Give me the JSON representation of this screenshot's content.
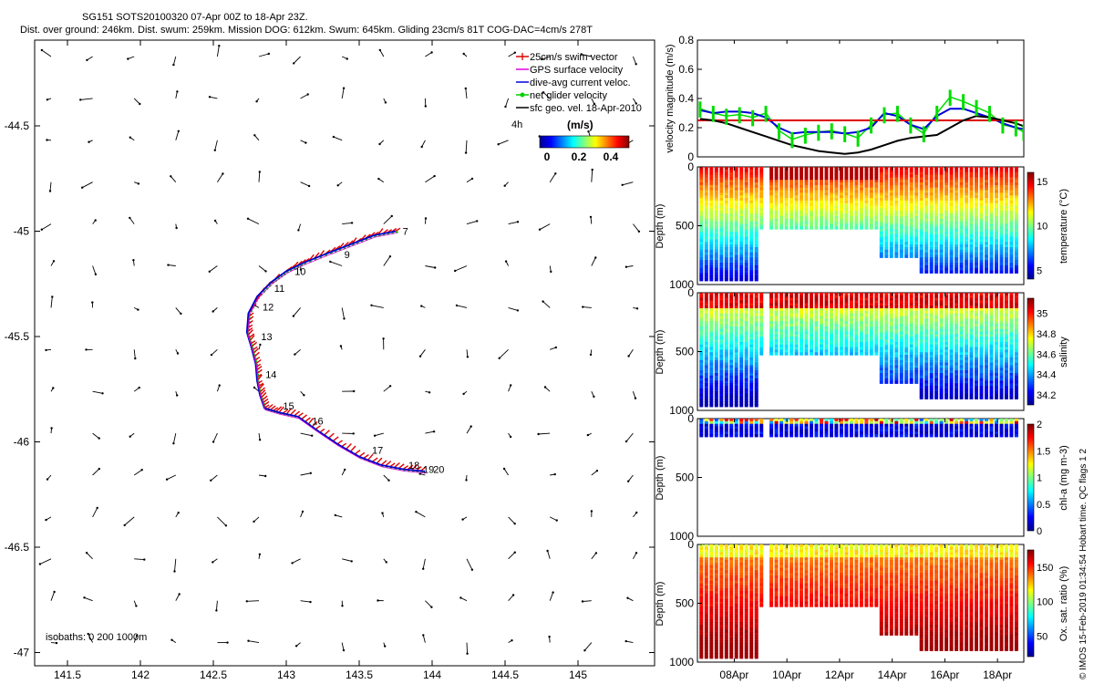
{
  "header": {
    "line1": "SG151 SOTS20100320 07-Apr 00Z to 18-Apr 23Z.",
    "line2": "Dist. over ground: 246km. Dist. swum: 259km. Mission DOG: 612km. Swum: 645km. Gliding 23cm/s 81T COG-DAC=4cm/s 278T"
  },
  "footer_credit": "© IMOS 15-Feb-2019 01:34:54 Hobart time. QC flags 1  2",
  "map": {
    "legend": {
      "items": [
        {
          "label": "25cm/s swim vector",
          "color": "#e00000",
          "marker": "+"
        },
        {
          "label": "GPS surface velocity",
          "color": "#e000e0",
          "marker": "-"
        },
        {
          "label": "dive-avg current veloc.",
          "color": "#0000e0",
          "marker": "-"
        },
        {
          "label": "net glider velocity",
          "color": "#00d000",
          "marker": "*"
        },
        {
          "label": "sfc geo. vel. 18-Apr-2010",
          "color": "#000000",
          "marker": "."
        }
      ],
      "scale_label": "4h",
      "colorbar_title": "(m/s)",
      "colorbar_ticks": [
        "0",
        "0.2",
        "0.4"
      ]
    },
    "isobaths_label": "isobaths: 0   200  1000m",
    "x_ticks": [
      "141.5",
      "142",
      "142.5",
      "143",
      "143.5",
      "144",
      "144.5",
      "145"
    ],
    "y_ticks": [
      "-44.5",
      "-45",
      "-45.5",
      "-46",
      "-46.5",
      "-47"
    ],
    "day_labels": [
      "7",
      "9",
      "10",
      "11",
      "12",
      "13",
      "14",
      "15",
      "16",
      "17",
      "18",
      "19",
      "20"
    ]
  },
  "time_axis": {
    "labels": [
      "08Apr",
      "10Apr",
      "12Apr",
      "14Apr",
      "16Apr",
      "18Apr"
    ]
  },
  "panels": [
    {
      "ylabel": "velocity magnitude (m/s)",
      "yticks": [
        "0",
        "0.2",
        "0.4",
        "0.6",
        "0.8"
      ]
    },
    {
      "ylabel": "Depth (m)",
      "yticks": [
        "0",
        "500",
        "1000"
      ],
      "cbar_label": "temperature (°C)",
      "cbar_ticks": [
        "5",
        "10",
        "15"
      ]
    },
    {
      "ylabel": "Depth (m)",
      "yticks": [
        "0",
        "500",
        "1000"
      ],
      "cbar_label": "salinity",
      "cbar_ticks": [
        "34.2",
        "34.4",
        "34.6",
        "34.8",
        "35"
      ]
    },
    {
      "ylabel": "Depth (m)",
      "yticks": [
        "0",
        "500",
        "1000"
      ],
      "cbar_label": "chl-a (mg m-3)",
      "cbar_ticks": [
        "0",
        "0.5",
        "1",
        "1.5",
        "2"
      ]
    },
    {
      "ylabel": "Depth (m)",
      "yticks": [
        "0",
        "500",
        "1000"
      ],
      "cbar_label": "Ox. sat. ratio (%)",
      "cbar_ticks": [
        "50",
        "100",
        "150"
      ]
    }
  ],
  "chart_data": [
    {
      "type": "scatter",
      "title": "",
      "xlim": [
        141.35,
        145.45
      ],
      "ylim": [
        -47.02,
        -44.15
      ],
      "track": {
        "lon": [
          143.75,
          143.6,
          143.45,
          143.3,
          143.12,
          143.0,
          142.9,
          142.8,
          142.74,
          142.73,
          142.76,
          142.79,
          142.8,
          142.82,
          142.85,
          142.95,
          143.08,
          143.2,
          143.35,
          143.5,
          143.65,
          143.8,
          143.95
        ],
        "lat": [
          -45.0,
          -45.02,
          -45.06,
          -45.1,
          -45.15,
          -45.19,
          -45.24,
          -45.31,
          -45.39,
          -45.48,
          -45.55,
          -45.63,
          -45.71,
          -45.78,
          -45.84,
          -45.86,
          -45.88,
          -45.94,
          -46.01,
          -46.07,
          -46.11,
          -46.13,
          -46.14
        ]
      },
      "day_markers": [
        {
          "label": "7",
          "lon": 143.76,
          "lat": -45.0
        },
        {
          "label": "9",
          "lon": 143.36,
          "lat": -45.11
        },
        {
          "label": "10",
          "lon": 143.02,
          "lat": -45.19
        },
        {
          "label": "11",
          "lon": 142.88,
          "lat": -45.27
        },
        {
          "label": "12",
          "lon": 142.8,
          "lat": -45.36
        },
        {
          "label": "13",
          "lon": 142.79,
          "lat": -45.5
        },
        {
          "label": "14",
          "lon": 142.82,
          "lat": -45.68
        },
        {
          "label": "15",
          "lon": 142.94,
          "lat": -45.83
        },
        {
          "label": "16",
          "lon": 143.14,
          "lat": -45.9
        },
        {
          "label": "17",
          "lon": 143.55,
          "lat": -46.04
        },
        {
          "label": "18",
          "lon": 143.8,
          "lat": -46.11
        },
        {
          "label": "19",
          "lon": 143.9,
          "lat": -46.13
        },
        {
          "label": "20",
          "lon": 143.97,
          "lat": -46.13
        }
      ]
    },
    {
      "type": "line",
      "xlabel": "",
      "ylabel": "velocity magnitude (m/s)",
      "xlim": [
        6.6,
        19.0
      ],
      "ylim": [
        0,
        0.8
      ],
      "series": [
        {
          "color": "#00dd00",
          "x": [
            6.7,
            7.2,
            7.7,
            8.2,
            8.7,
            9.2,
            9.7,
            10.2,
            10.7,
            11.2,
            11.7,
            12.2,
            12.7,
            13.2,
            13.7,
            14.2,
            14.7,
            15.2,
            15.7,
            16.2,
            16.7,
            17.2,
            17.7,
            18.2,
            18.7,
            19.0
          ],
          "y": [
            0.33,
            0.3,
            0.28,
            0.29,
            0.27,
            0.3,
            0.18,
            0.12,
            0.15,
            0.17,
            0.18,
            0.16,
            0.13,
            0.22,
            0.29,
            0.3,
            0.22,
            0.16,
            0.3,
            0.41,
            0.38,
            0.34,
            0.3,
            0.22,
            0.2,
            0.17
          ]
        },
        {
          "color": "#0000dd",
          "x": [
            6.7,
            7.2,
            7.7,
            8.2,
            8.7,
            9.2,
            9.7,
            10.2,
            10.7,
            11.2,
            11.7,
            12.2,
            12.7,
            13.2,
            13.7,
            14.2,
            14.7,
            15.2,
            15.7,
            16.2,
            16.7,
            17.2,
            17.7,
            18.2,
            18.7,
            19.0
          ],
          "y": [
            0.32,
            0.3,
            0.31,
            0.31,
            0.3,
            0.27,
            0.2,
            0.16,
            0.17,
            0.17,
            0.17,
            0.16,
            0.17,
            0.2,
            0.3,
            0.28,
            0.22,
            0.19,
            0.28,
            0.33,
            0.33,
            0.3,
            0.27,
            0.23,
            0.2,
            0.19
          ]
        },
        {
          "color": "#dd0000",
          "x": [
            6.6,
            19.0
          ],
          "y": [
            0.25,
            0.25
          ]
        },
        {
          "color": "#000000",
          "x": [
            6.7,
            7.2,
            7.7,
            8.2,
            8.7,
            9.2,
            9.7,
            10.2,
            10.7,
            11.2,
            11.7,
            12.2,
            12.7,
            13.2,
            13.7,
            14.2,
            14.7,
            15.2,
            15.7,
            16.2,
            16.7,
            17.2,
            17.7,
            18.2,
            18.7,
            19.0
          ],
          "y": [
            0.26,
            0.25,
            0.23,
            0.2,
            0.17,
            0.14,
            0.11,
            0.08,
            0.06,
            0.04,
            0.03,
            0.02,
            0.03,
            0.05,
            0.08,
            0.11,
            0.13,
            0.14,
            0.15,
            0.2,
            0.25,
            0.28,
            0.27,
            0.25,
            0.23,
            0.21
          ]
        }
      ]
    },
    {
      "type": "heatmap",
      "variable": "temperature (°C)",
      "ylim": [
        1000,
        0
      ],
      "clim": [
        4,
        16
      ]
    },
    {
      "type": "heatmap",
      "variable": "salinity",
      "ylim": [
        1000,
        0
      ],
      "clim": [
        34.1,
        35.15
      ]
    },
    {
      "type": "heatmap",
      "variable": "chl-a (mg m-3)",
      "ylim": [
        1000,
        0
      ],
      "clim": [
        0,
        2
      ]
    },
    {
      "type": "heatmap",
      "variable": "Ox. sat. ratio (%)",
      "ylim": [
        1000,
        0
      ],
      "clim": [
        20,
        175
      ]
    }
  ]
}
